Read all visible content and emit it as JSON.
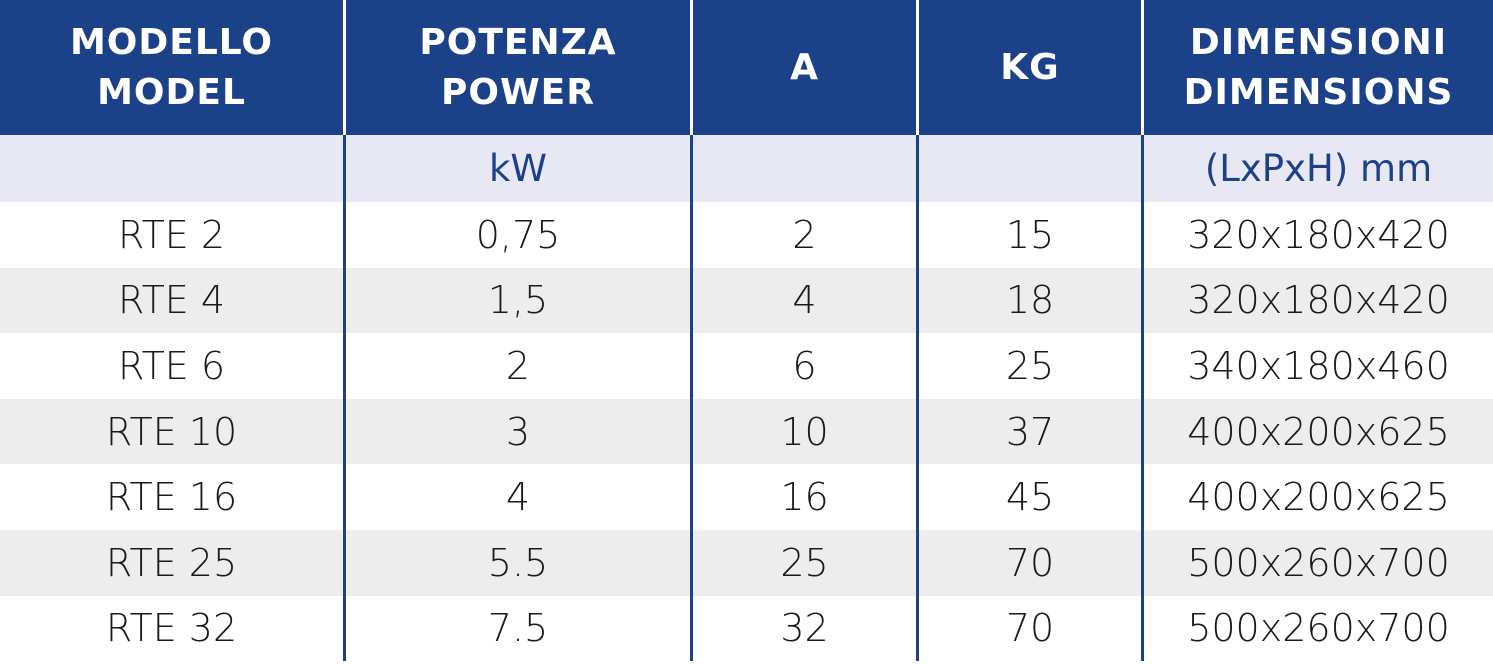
{
  "header": {
    "col0": [
      "MODELLO",
      "MODEL"
    ],
    "col1": [
      "POTENZA",
      "POWER"
    ],
    "col2": [
      "A"
    ],
    "col3": [
      "KG"
    ],
    "col4": [
      "DIMENSIONI",
      "DIMENSIONS"
    ]
  },
  "units": [
    "",
    "kW",
    "",
    "",
    "(LxPxH) mm"
  ],
  "rows": [
    [
      "RTE 2",
      "0,75",
      "2",
      "15",
      "320x180x420"
    ],
    [
      "RTE 4",
      "1,5",
      "4",
      "18",
      "320x180x420"
    ],
    [
      "RTE 6",
      "2",
      "6",
      "25",
      "340x180x460"
    ],
    [
      "RTE 10",
      "3",
      "10",
      "37",
      "400x200x625"
    ],
    [
      "RTE 16",
      "4",
      "16",
      "45",
      "400x200x625"
    ],
    [
      "RTE 25",
      "5.5",
      "25",
      "70",
      "500x260x700"
    ],
    [
      "RTE 32",
      "7.5",
      "32",
      "70",
      "500x260x700"
    ]
  ],
  "colors": {
    "header_bg": "#1b4189",
    "units_bg": "#e8e8f4",
    "row_alt_bg": "#ededed"
  }
}
